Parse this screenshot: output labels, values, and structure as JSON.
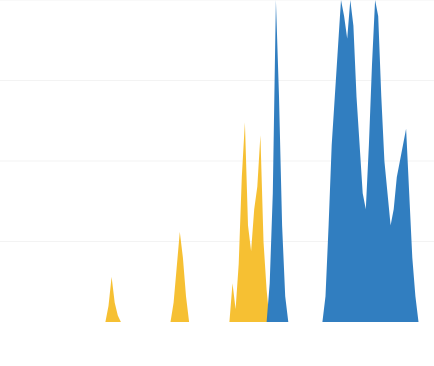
{
  "chart_data": {
    "type": "area",
    "title": "",
    "xlabel": "",
    "ylabel": "",
    "x_tick_labels": [
      "",
      "",
      "",
      "",
      "",
      "",
      "",
      "",
      "",
      "",
      "",
      "",
      "",
      "",
      "",
      ""
    ],
    "ylim": [
      0,
      100
    ],
    "grid": true,
    "legend": "none",
    "x": [
      0,
      1,
      2,
      3,
      4,
      5,
      6,
      7,
      8,
      9,
      10,
      11,
      12,
      13,
      14,
      15,
      16,
      17,
      18,
      19,
      20,
      21,
      22,
      23,
      24,
      25,
      26,
      27,
      28,
      29,
      30,
      31,
      32,
      33,
      34,
      35,
      36,
      37,
      38,
      39,
      40,
      41,
      42,
      43,
      44,
      45,
      46,
      47,
      48,
      49,
      50,
      51,
      52,
      53,
      54,
      55,
      56,
      57,
      58,
      59,
      60,
      61,
      62,
      63,
      64,
      65,
      66,
      67,
      68,
      69,
      70,
      71,
      72,
      73,
      74,
      75,
      76,
      77,
      78,
      79,
      80,
      81,
      82,
      83,
      84,
      85,
      86,
      87,
      88,
      89,
      90,
      91,
      92,
      93,
      94,
      95,
      96,
      97,
      98,
      99,
      100,
      101,
      102,
      103,
      104,
      105,
      106,
      107,
      108,
      109,
      110,
      111,
      112,
      113,
      114,
      115,
      116,
      117,
      118,
      119,
      120,
      121,
      122,
      123,
      124,
      125,
      126,
      127,
      128,
      129,
      130,
      131,
      132,
      133,
      134,
      135,
      136,
      137,
      138,
      139,
      140
    ],
    "series": [
      {
        "color": "#f5bd28",
        "values": [
          0,
          0,
          0,
          0,
          0,
          0,
          0,
          0,
          0,
          0,
          0,
          0,
          0,
          0,
          0,
          0,
          0,
          0,
          0,
          0,
          0,
          0,
          0,
          0,
          0,
          0,
          0,
          0,
          0,
          0,
          0,
          0,
          0,
          0,
          0,
          5,
          14,
          6,
          2,
          0,
          0,
          0,
          0,
          0,
          0,
          0,
          0,
          0,
          0,
          0,
          0,
          0,
          0,
          0,
          0,
          0,
          6,
          17,
          28,
          20,
          8,
          0,
          0,
          0,
          0,
          0,
          0,
          0,
          0,
          0,
          0,
          0,
          0,
          0,
          0,
          12,
          4,
          18,
          45,
          62,
          30,
          22,
          35,
          42,
          58,
          25,
          10,
          0,
          0,
          0,
          0,
          0,
          0,
          0,
          0,
          0,
          0,
          0,
          0,
          0,
          0,
          0,
          0,
          0,
          0,
          0,
          0,
          0,
          0,
          0,
          0,
          0,
          0,
          0,
          0,
          0,
          0,
          0,
          0,
          0,
          0,
          0,
          0,
          0,
          0,
          0,
          0,
          0,
          0,
          0,
          0,
          0,
          0,
          0,
          0,
          0,
          0,
          0,
          0,
          0,
          0
        ]
      },
      {
        "color": "#2677bd",
        "values": [
          0,
          0,
          0,
          0,
          0,
          0,
          0,
          0,
          0,
          0,
          0,
          0,
          0,
          0,
          0,
          0,
          0,
          0,
          0,
          0,
          0,
          0,
          0,
          0,
          0,
          0,
          0,
          0,
          0,
          0,
          0,
          0,
          0,
          0,
          0,
          0,
          0,
          0,
          0,
          0,
          0,
          0,
          0,
          0,
          0,
          0,
          0,
          0,
          0,
          0,
          0,
          0,
          0,
          0,
          0,
          0,
          0,
          0,
          0,
          0,
          0,
          0,
          0,
          0,
          0,
          0,
          0,
          0,
          0,
          0,
          0,
          0,
          0,
          0,
          0,
          0,
          0,
          0,
          0,
          0,
          0,
          0,
          0,
          0,
          0,
          0,
          0,
          12,
          40,
          100,
          70,
          30,
          8,
          0,
          0,
          0,
          0,
          0,
          0,
          0,
          0,
          0,
          0,
          0,
          0,
          8,
          30,
          55,
          70,
          85,
          100,
          95,
          88,
          100,
          92,
          70,
          55,
          40,
          35,
          55,
          80,
          100,
          95,
          70,
          50,
          40,
          30,
          35,
          45,
          50,
          55,
          60,
          40,
          20,
          8,
          0,
          0,
          0,
          0,
          0,
          0
        ]
      }
    ]
  }
}
